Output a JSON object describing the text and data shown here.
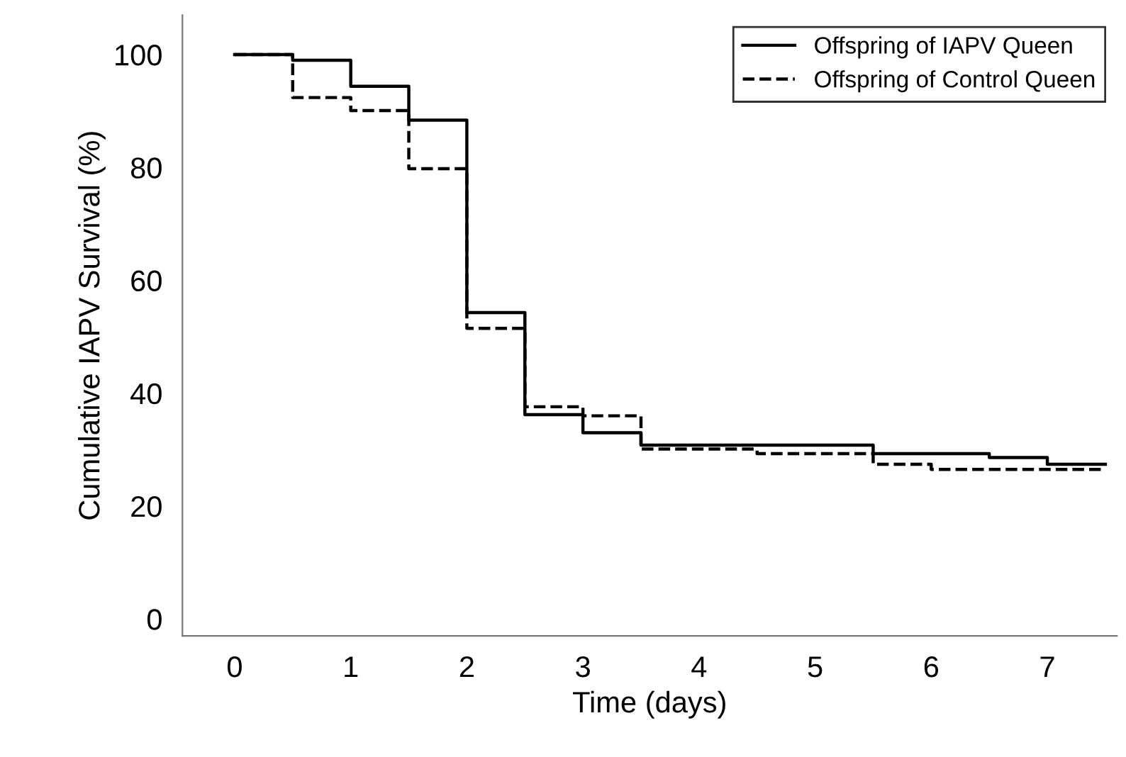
{
  "chart_data": {
    "type": "step",
    "xlabel": "Time (days)",
    "ylabel": "Cumulative IAPV Survival (%)",
    "xlim": [
      -0.45,
      7.6
    ],
    "ylim": [
      -3,
      107
    ],
    "xticks": [
      0,
      1,
      2,
      3,
      4,
      5,
      6,
      7
    ],
    "yticks": [
      0,
      20,
      40,
      60,
      80,
      100
    ],
    "grid": false,
    "legend": "top right",
    "series": [
      {
        "name": "Offspring of IAPV Queen",
        "color": "#000000",
        "line_style": "solid",
        "x": [
          0,
          0.5,
          1,
          1.5,
          2,
          2.5,
          3,
          3.5,
          5.5,
          6.5,
          7,
          7.5
        ],
        "values": [
          100,
          99,
          94.4,
          88.4,
          54.3,
          36.2,
          33,
          30.8,
          29.3,
          28.6,
          27.4,
          27.4
        ]
      },
      {
        "name": "Offspring of Control Queen",
        "color": "#000000",
        "line_style": "dashed",
        "x": [
          0,
          0.5,
          1,
          1.5,
          2,
          2.5,
          3,
          3.5,
          4.5,
          5.5,
          6,
          7.5
        ],
        "values": [
          100,
          92.4,
          90.1,
          79.8,
          51.5,
          37.6,
          36,
          30.1,
          29.3,
          27.4,
          26.5,
          26.5
        ]
      }
    ]
  }
}
